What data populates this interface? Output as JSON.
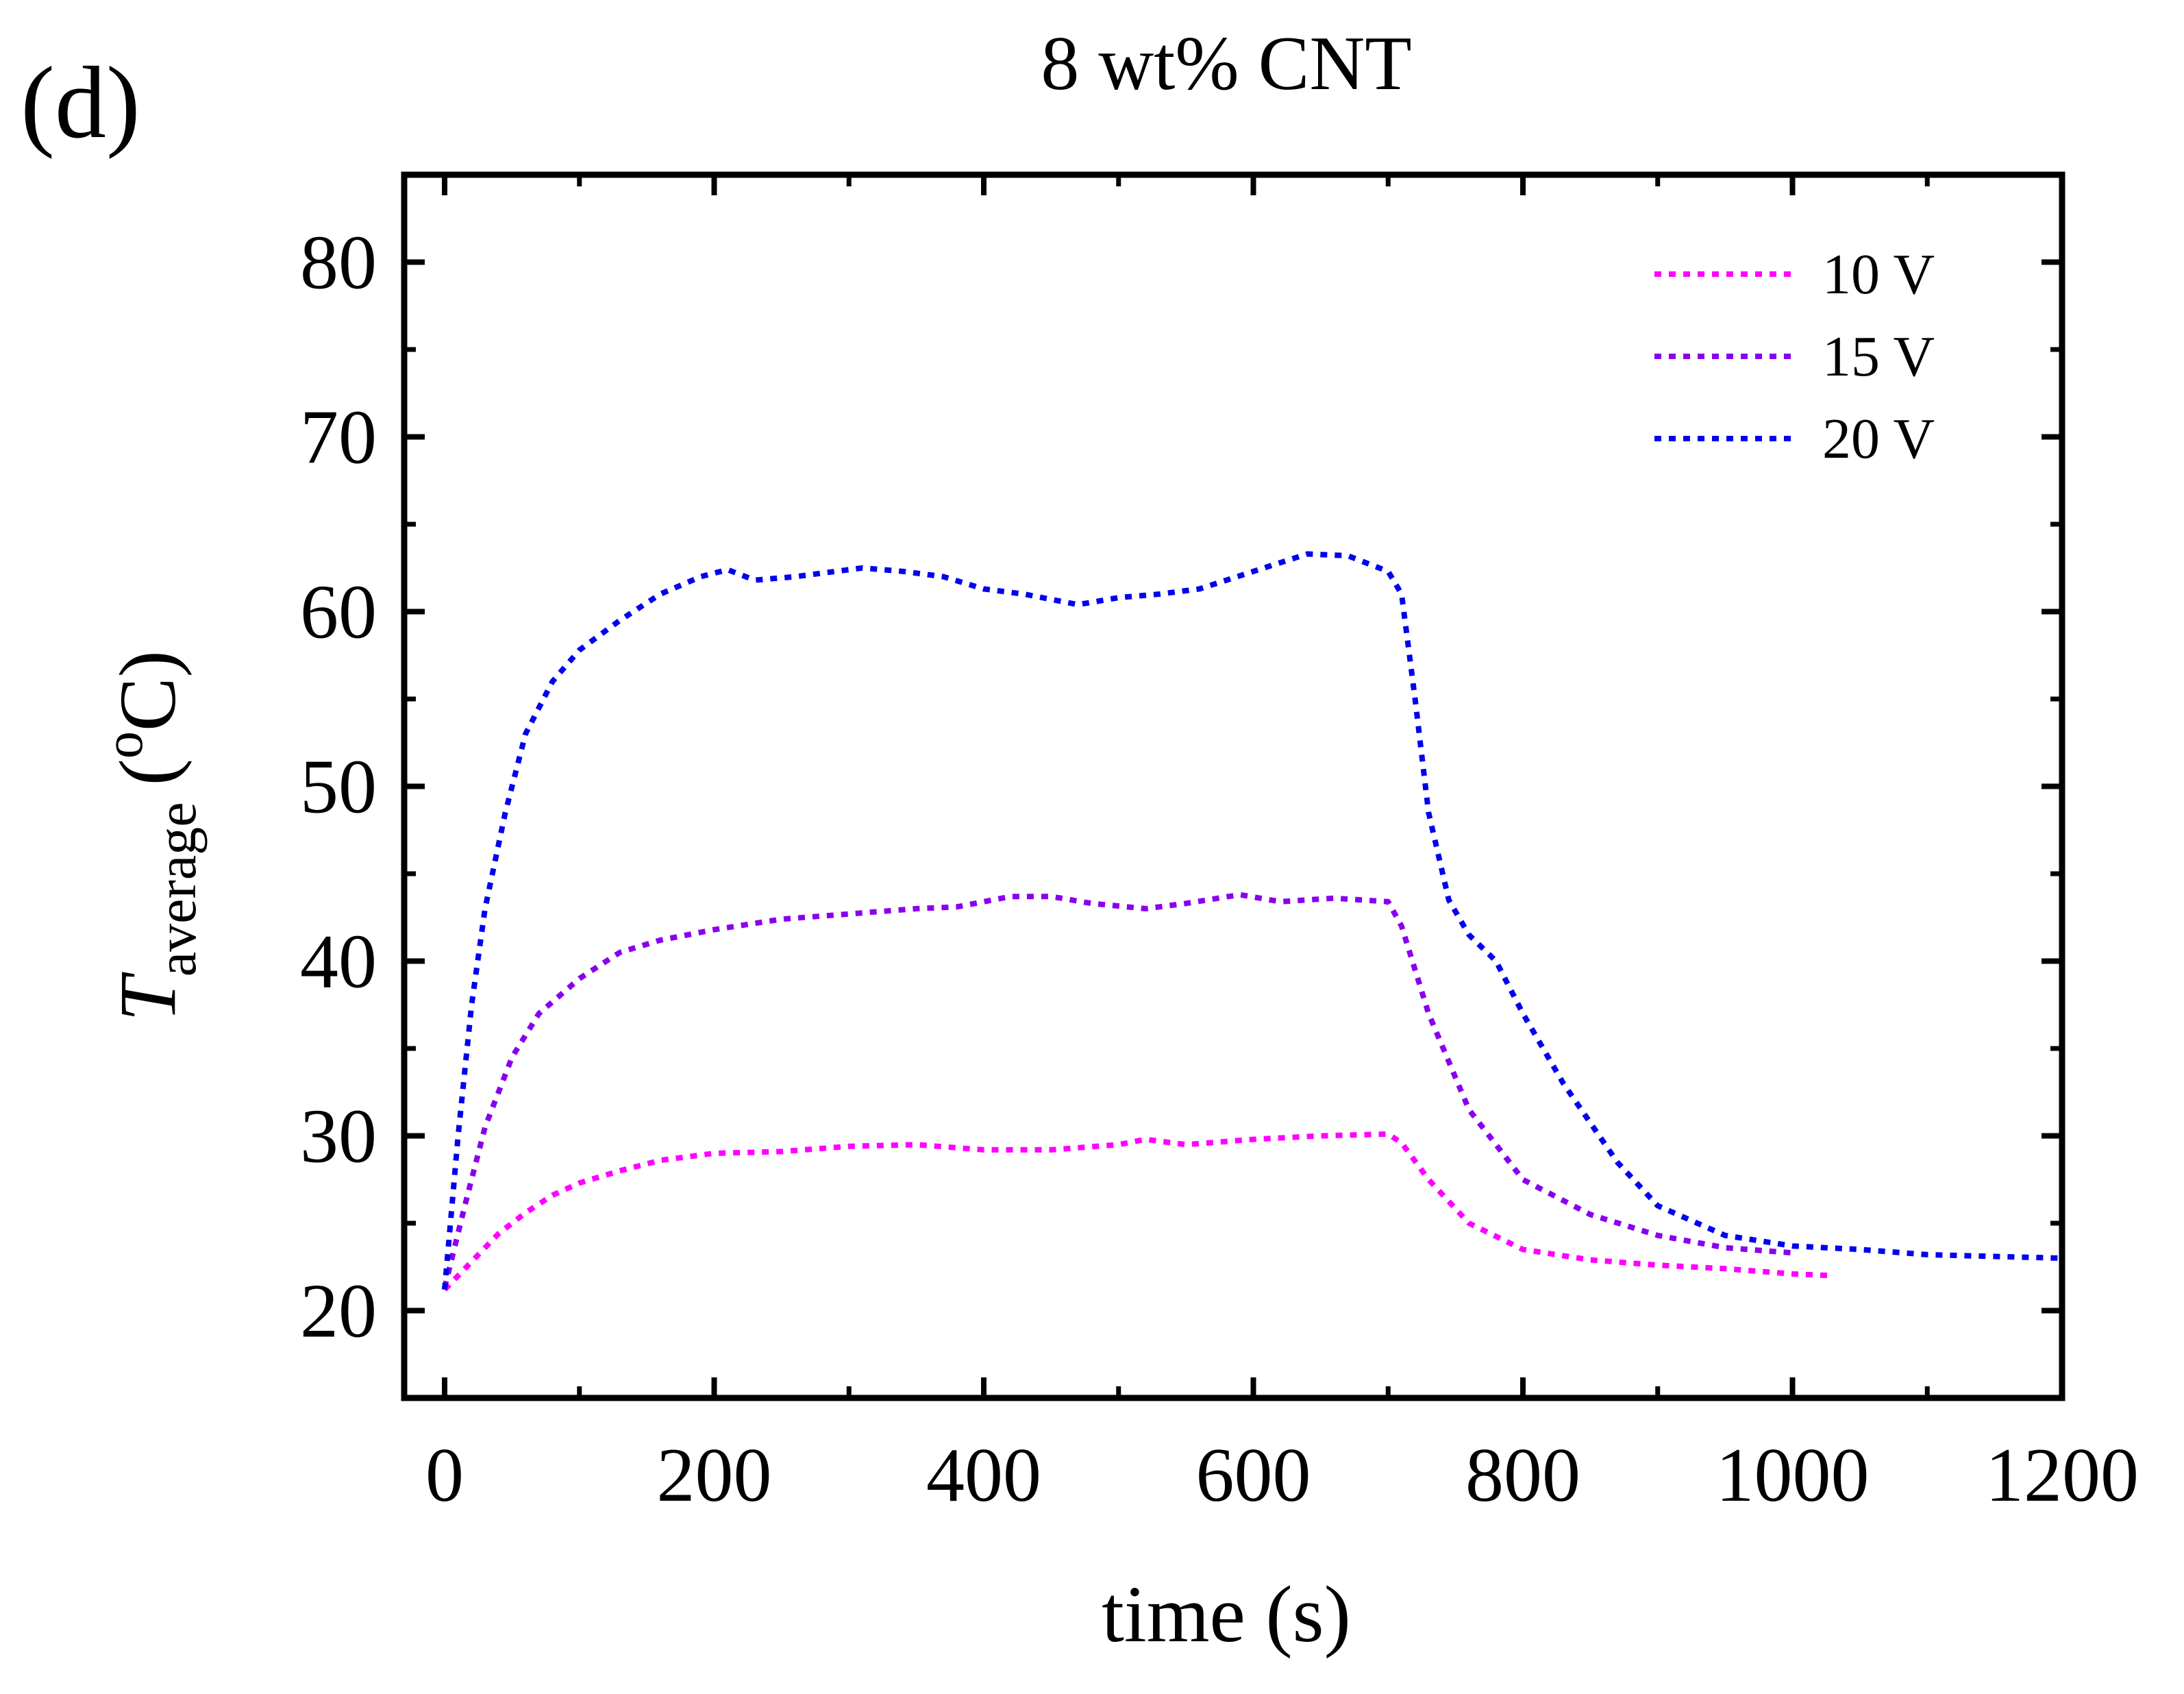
{
  "chart_data": {
    "type": "line",
    "panel_label": "(d)",
    "title": "8 wt% CNT",
    "xlabel": "time (s)",
    "ylabel": {
      "symbol": "T",
      "subscript": "average",
      "unit": "(°C)",
      "unit_open": "(",
      "unit_degree": "o",
      "unit_close": "C)"
    },
    "xlim": [
      -30,
      1200
    ],
    "ylim": [
      15,
      85
    ],
    "xticks": [
      0,
      200,
      400,
      600,
      800,
      1000,
      1200
    ],
    "xtick_labels": [
      "0",
      "200",
      "400",
      "600",
      "800",
      "1000",
      "1200"
    ],
    "xminor": [
      100,
      300,
      500,
      700,
      900,
      1100
    ],
    "yticks": [
      20,
      30,
      40,
      50,
      60,
      70,
      80
    ],
    "ytick_labels": [
      "20",
      "30",
      "40",
      "50",
      "60",
      "70",
      "80"
    ],
    "yminor": [
      25,
      35,
      45,
      55,
      65,
      75
    ],
    "legend_position": "top-right",
    "line_style": "dotted",
    "series": [
      {
        "name": "10 V",
        "color": "#ff00ff",
        "x": [
          0,
          20,
          40,
          60,
          80,
          100,
          130,
          160,
          200,
          250,
          300,
          350,
          400,
          450,
          500,
          520,
          550,
          600,
          650,
          700,
          710,
          730,
          760,
          800,
          850,
          900,
          950,
          1000,
          1030
        ],
        "y": [
          21.2,
          22.8,
          24.4,
          25.6,
          26.6,
          27.3,
          28.0,
          28.6,
          29.0,
          29.1,
          29.4,
          29.5,
          29.2,
          29.2,
          29.5,
          29.8,
          29.5,
          29.8,
          30.0,
          30.1,
          29.6,
          27.5,
          25.0,
          23.5,
          22.9,
          22.6,
          22.4,
          22.1,
          22.0
        ]
      },
      {
        "name": "15 V",
        "color": "#8800ee",
        "x": [
          0,
          15,
          30,
          50,
          70,
          100,
          130,
          160,
          200,
          250,
          300,
          350,
          380,
          420,
          450,
          480,
          520,
          550,
          590,
          620,
          660,
          700,
          710,
          730,
          760,
          800,
          850,
          900,
          950,
          1000
        ],
        "y": [
          21.3,
          26.0,
          30.5,
          34.5,
          37.0,
          39.0,
          40.5,
          41.2,
          41.8,
          42.4,
          42.7,
          43.0,
          43.1,
          43.7,
          43.7,
          43.3,
          43.0,
          43.3,
          43.8,
          43.4,
          43.6,
          43.4,
          42.0,
          37.0,
          31.5,
          27.5,
          25.5,
          24.3,
          23.6,
          23.3
        ]
      },
      {
        "name": "20 V",
        "color": "#0000ee",
        "x": [
          0,
          10,
          20,
          30,
          45,
          60,
          80,
          100,
          130,
          160,
          190,
          210,
          230,
          260,
          290,
          310,
          340,
          370,
          400,
          430,
          470,
          500,
          530,
          560,
          600,
          640,
          670,
          700,
          710,
          720,
          730,
          745,
          760,
          780,
          800,
          830,
          870,
          900,
          950,
          1000,
          1050,
          1100,
          1150,
          1200
        ],
        "y": [
          21.2,
          30.0,
          37.5,
          43.0,
          48.5,
          53.0,
          56.0,
          57.8,
          59.5,
          61.0,
          62.0,
          62.4,
          61.8,
          62.0,
          62.3,
          62.5,
          62.3,
          62.0,
          61.3,
          61.0,
          60.4,
          60.8,
          61.0,
          61.3,
          62.3,
          63.3,
          63.2,
          62.3,
          61.0,
          55.0,
          48.5,
          43.5,
          41.5,
          40.0,
          37.0,
          33.0,
          28.5,
          26.0,
          24.3,
          23.7,
          23.5,
          23.2,
          23.1,
          23.0
        ]
      }
    ]
  }
}
